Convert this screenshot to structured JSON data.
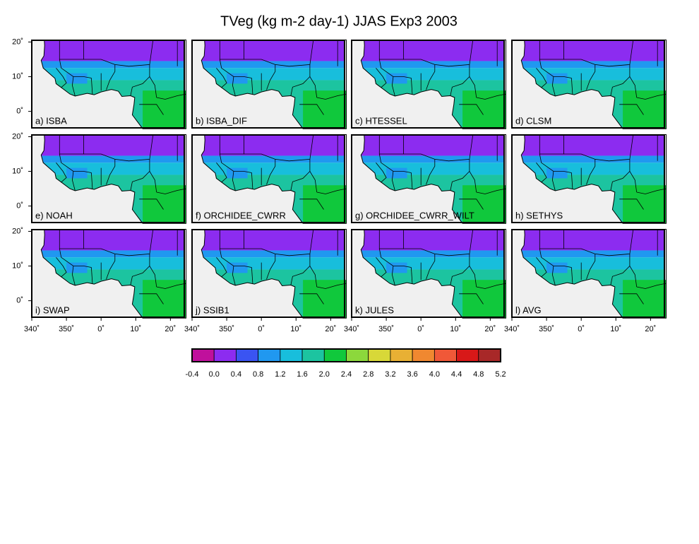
{
  "title": "TVeg (kg m-2 day-1) JJAS Exp3 2003",
  "panels": [
    "a) ISBA",
    "b) ISBA_DIF",
    "c) HTESSEL",
    "d) CLSM",
    "e) NOAH",
    "f) ORCHIDEE_CWRR",
    "g) ORCHIDEE_CWRR_WILT",
    "h) SETHYS",
    "i) SWAP",
    "j) SSIB1",
    "k) JULES",
    "l) AVG"
  ],
  "lat_ticks": [
    {
      "value": 20,
      "label": "20˚"
    },
    {
      "value": 10,
      "label": "10˚"
    },
    {
      "value": 0,
      "label": "0˚"
    }
  ],
  "lon_ticks": [
    {
      "value": 340,
      "label": "340˚"
    },
    {
      "value": 350,
      "label": "350˚"
    },
    {
      "value": 0,
      "label": "0˚"
    },
    {
      "value": 10,
      "label": "10˚"
    },
    {
      "value": 20,
      "label": "20˚"
    }
  ],
  "colorbar": {
    "levels": [
      -0.4,
      {
        "value": 0,
        "label": "0.0"
      },
      0.4,
      0.8,
      1.2,
      1.6,
      {
        "value": 2,
        "label": "2.0"
      },
      2.4,
      2.8,
      3.2,
      3.6,
      {
        "value": 4,
        "label": "4.0"
      },
      4.4,
      4.8,
      5.2
    ],
    "colors": [
      "#c0109c",
      "#8c2cf0",
      "#3a54f2",
      "#2098f0",
      "#18bedc",
      "#1cc4a0",
      "#10c83c",
      "#8cd83c",
      "#d8d838",
      "#e8b034",
      "#f08830",
      "#f05838",
      "#d81818",
      "#a82828"
    ]
  }
}
